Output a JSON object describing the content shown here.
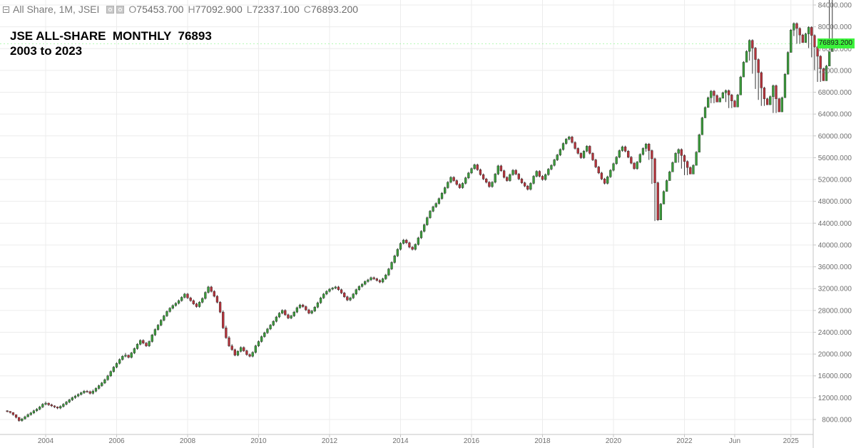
{
  "header": {
    "instrument": "All Share, 1M, JSEI",
    "open_label": "O",
    "open": "75453.700",
    "high_label": "H",
    "high": "77092.900",
    "low_label": "L",
    "low": "72337.100",
    "close_label": "C",
    "close": "76893.200"
  },
  "title_line1": "JSE ALL-SHARE  MONTHLY  76893",
  "title_line2": "2003 to 2023",
  "last_price_label": "76893.200",
  "colors": {
    "up_candle": "#3a9a3a",
    "down_candle": "#b3323a",
    "wick": "#333333",
    "grid": "#ececec",
    "last_price_tag": "#3cf23c"
  },
  "chart_data": {
    "type": "candlestick",
    "title": "JSE ALL-SHARE  MONTHLY  76893",
    "subtitle": "2003 to 2023",
    "x_axis_labels": [
      "2004",
      "2006",
      "2008",
      "2010",
      "2012",
      "2014",
      "2016",
      "2018",
      "2020",
      "2022",
      "Jun",
      "2025"
    ],
    "y_ticks": [
      "8000.000",
      "12000.000",
      "16000.000",
      "20000.000",
      "24000.000",
      "28000.000",
      "32000.000",
      "36000.000",
      "40000.000",
      "44000.000",
      "48000.000",
      "52000.000",
      "56000.000",
      "60000.000",
      "64000.000",
      "68000.000",
      "72000.000",
      "76000.000",
      "80000.000",
      "84000.000"
    ],
    "ylim": [
      6000,
      85000
    ],
    "x_range": [
      "2002-12",
      "2025-10"
    ],
    "grid": true,
    "last_price": 76893.2,
    "start": "2002-12",
    "interval": "1M",
    "closes": [
      9500,
      9300,
      8900,
      8400,
      7800,
      8100,
      8500,
      8900,
      9200,
      9600,
      9900,
      10300,
      10800,
      11000,
      10700,
      10500,
      10300,
      10100,
      10400,
      10800,
      11200,
      11600,
      12000,
      12300,
      12600,
      12900,
      13200,
      13100,
      12800,
      13200,
      13700,
      14200,
      14700,
      15300,
      16000,
      16800,
      17600,
      18300,
      19000,
      19600,
      19800,
      19400,
      20200,
      21000,
      21800,
      22500,
      22000,
      21500,
      22300,
      23500,
      24500,
      25300,
      26200,
      27000,
      27800,
      28400,
      28900,
      29300,
      29800,
      30400,
      31000,
      30300,
      29800,
      29200,
      28700,
      29500,
      30200,
      31300,
      32300,
      31500,
      30600,
      29500,
      27700,
      24800,
      23000,
      21500,
      20800,
      19800,
      20500,
      21200,
      20600,
      19900,
      19600,
      20300,
      21500,
      22300,
      23200,
      23900,
      24600,
      25300,
      26000,
      26800,
      27500,
      28000,
      27200,
      26600,
      27000,
      27700,
      28500,
      29000,
      28700,
      28100,
      27500,
      27900,
      28600,
      29400,
      30300,
      31000,
      31500,
      31900,
      32100,
      32300,
      31800,
      31200,
      30500,
      29900,
      30300,
      31000,
      31800,
      32400,
      32800,
      33300,
      33600,
      34000,
      33800,
      33500,
      33200,
      33800,
      34500,
      35600,
      36800,
      38000,
      39200,
      40300,
      40900,
      40400,
      39600,
      39200,
      40100,
      41300,
      42500,
      43700,
      45000,
      46200,
      47000,
      47600,
      48500,
      49500,
      50500,
      51500,
      52400,
      51800,
      51100,
      50500,
      51300,
      52300,
      53200,
      54000,
      54700,
      53800,
      52900,
      52100,
      51500,
      50700,
      51500,
      53000,
      54500,
      53600,
      52400,
      51800,
      52900,
      53700,
      53000,
      52100,
      51400,
      50800,
      50200,
      51300,
      52600,
      53500,
      52600,
      52000,
      52900,
      53900,
      54600,
      55600,
      56500,
      57500,
      58600,
      59400,
      59800,
      58800,
      57700,
      56800,
      56000,
      57200,
      58100,
      56800,
      55600,
      54300,
      53200,
      52100,
      51300,
      52500,
      53700,
      54900,
      56100,
      57300,
      58000,
      57200,
      56100,
      55000,
      54000,
      55200,
      56600,
      57700,
      58500,
      57300,
      55800,
      51400,
      44600,
      47500,
      49800,
      51800,
      53400,
      55100,
      56800,
      57500,
      56400,
      55300,
      54200,
      53000,
      54600,
      57000,
      60200,
      63300,
      65200,
      67000,
      68200,
      67400,
      66200,
      66900,
      67900,
      68300,
      67500,
      66400,
      65300,
      67500,
      70800,
      73500,
      75500,
      77500,
      76100,
      74000,
      71600,
      68800,
      66800,
      65700,
      67200,
      69200,
      66800,
      64400,
      67000,
      71300,
      75300,
      79400,
      80600,
      79700,
      78500,
      77100,
      78700,
      79900,
      78400,
      76300,
      74600,
      72300,
      70100,
      72800,
      75453,
      76893
    ],
    "highs": [
      9700,
      9500,
      9300,
      8900,
      8400,
      8300,
      8700,
      9100,
      9400,
      9800,
      10100,
      10500,
      11000,
      11300,
      11100,
      10900,
      10600,
      10400,
      10600,
      11000,
      11400,
      11800,
      12200,
      12500,
      12800,
      13100,
      13400,
      13400,
      13300,
      13500,
      13900,
      14400,
      14900,
      15500,
      16200,
      17000,
      17800,
      18500,
      19200,
      19800,
      20200,
      19900,
      20400,
      21200,
      22000,
      22700,
      22700,
      22200,
      22500,
      23700,
      24700,
      25500,
      26400,
      27200,
      28000,
      28600,
      29100,
      29500,
      30000,
      30600,
      31200,
      31200,
      30500,
      30000,
      29400,
      29700,
      30400,
      31500,
      32500,
      32500,
      31700,
      30800,
      29700,
      28000,
      25200,
      23300,
      21800,
      21000,
      20700,
      21400,
      21400,
      20800,
      20100,
      20500,
      21700,
      22500,
      23400,
      24100,
      24800,
      25500,
      26200,
      27000,
      27700,
      28200,
      28200,
      27400,
      27200,
      27900,
      28700,
      29200,
      29200,
      28900,
      28300,
      28100,
      28800,
      29600,
      30500,
      31200,
      31700,
      32100,
      32300,
      32500,
      32500,
      32000,
      31400,
      30700,
      30500,
      31200,
      32000,
      32600,
      33000,
      33500,
      33800,
      34200,
      34200,
      34000,
      33700,
      34000,
      34700,
      35800,
      37000,
      38200,
      39400,
      40500,
      41100,
      41100,
      40600,
      39800,
      40300,
      41500,
      42700,
      43900,
      45200,
      46400,
      47200,
      47800,
      48700,
      49700,
      50700,
      51700,
      52600,
      52600,
      52000,
      51300,
      51500,
      52500,
      53400,
      54200,
      54900,
      54900,
      54000,
      53100,
      52300,
      51700,
      51700,
      53200,
      54700,
      54700,
      53800,
      52600,
      53100,
      53900,
      53900,
      53200,
      52300,
      51600,
      51000,
      51500,
      52800,
      53700,
      53700,
      52800,
      53100,
      54100,
      54800,
      55800,
      56700,
      57700,
      58800,
      59600,
      60000,
      60000,
      59000,
      57900,
      57000,
      57400,
      58300,
      58300,
      57000,
      55800,
      54500,
      53400,
      52300,
      52700,
      53900,
      55100,
      56300,
      57500,
      58200,
      58200,
      57400,
      56300,
      55200,
      55400,
      56800,
      57900,
      58700,
      58700,
      57500,
      56000,
      51600,
      47700,
      50000,
      52000,
      53600,
      55300,
      57000,
      57700,
      57700,
      56600,
      55500,
      54400,
      54800,
      57200,
      60400,
      63500,
      65400,
      67200,
      68400,
      68400,
      67600,
      67100,
      68100,
      68500,
      68500,
      67700,
      66600,
      67700,
      71000,
      73700,
      75700,
      77700,
      77700,
      76300,
      74200,
      71800,
      69000,
      67000,
      67400,
      69400,
      69400,
      67000,
      67200,
      71500,
      75500,
      79600,
      80800,
      80800,
      79900,
      78700,
      78900,
      80100,
      80100,
      78600,
      76500,
      74800,
      72500,
      73000,
      75653,
      77093
    ],
    "lows": [
      9300,
      9100,
      8700,
      8200,
      7600,
      7600,
      8000,
      8400,
      8700,
      9000,
      9400,
      9700,
      10100,
      10600,
      10500,
      10300,
      10100,
      9900,
      9900,
      10200,
      10600,
      11000,
      11400,
      11800,
      12100,
      12400,
      12700,
      12900,
      12600,
      12600,
      13000,
      13500,
      14000,
      14500,
      15100,
      15800,
      16600,
      17400,
      18100,
      18800,
      19400,
      19200,
      19200,
      20000,
      20800,
      21600,
      21800,
      21300,
      21300,
      22100,
      23300,
      24300,
      25100,
      26000,
      26800,
      27600,
      28200,
      28700,
      29100,
      29600,
      30200,
      30100,
      29600,
      29000,
      28500,
      28500,
      29300,
      30000,
      31100,
      31300,
      30400,
      29300,
      27500,
      24600,
      22800,
      21300,
      20600,
      19600,
      19600,
      20300,
      20400,
      19700,
      19400,
      19400,
      20100,
      21300,
      22100,
      23000,
      23700,
      24400,
      25100,
      25800,
      26600,
      27300,
      27000,
      26400,
      26400,
      26800,
      27500,
      28300,
      28500,
      27900,
      27300,
      27300,
      27700,
      28400,
      29200,
      30100,
      30800,
      31300,
      31700,
      31900,
      31600,
      31000,
      30300,
      29700,
      29700,
      30100,
      30800,
      31600,
      32200,
      32600,
      33100,
      33400,
      33600,
      33300,
      33000,
      33000,
      33600,
      34300,
      35400,
      36600,
      37800,
      39000,
      40100,
      40200,
      39400,
      39000,
      39000,
      39900,
      41100,
      42300,
      43500,
      44800,
      46000,
      46800,
      47400,
      48300,
      49300,
      50300,
      51300,
      51600,
      50900,
      50300,
      50300,
      51100,
      52100,
      53000,
      53800,
      53600,
      52700,
      51900,
      51300,
      50500,
      50500,
      51300,
      52800,
      53400,
      52200,
      51600,
      51600,
      52700,
      52800,
      51900,
      51200,
      50600,
      50000,
      50000,
      51100,
      52400,
      52400,
      51800,
      51800,
      52700,
      53700,
      54400,
      55400,
      56300,
      57300,
      58400,
      59200,
      58600,
      57500,
      56600,
      55800,
      55800,
      57000,
      56600,
      55400,
      54100,
      53000,
      51900,
      51100,
      51100,
      52300,
      53500,
      54700,
      55900,
      57100,
      57000,
      55900,
      54800,
      53800,
      53800,
      55000,
      56400,
      57100,
      55600,
      51200,
      44400,
      44400,
      47300,
      49600,
      51600,
      53200,
      54900,
      56200,
      55100,
      54000,
      52800,
      52800,
      54400,
      56800,
      60000,
      63100,
      65000,
      66800,
      67200,
      66000,
      66000,
      66700,
      67700,
      67300,
      66200,
      65100,
      65100,
      67300,
      70600,
      73300,
      75300,
      75900,
      73800,
      71400,
      68600,
      66600,
      65500,
      65500,
      67000,
      66600,
      64200,
      64200,
      66800,
      71100,
      75100,
      79200,
      79500,
      78300,
      76900,
      76900,
      78500,
      78200,
      76100,
      74400,
      72100,
      69900,
      69900,
      72600,
      72337
    ]
  }
}
